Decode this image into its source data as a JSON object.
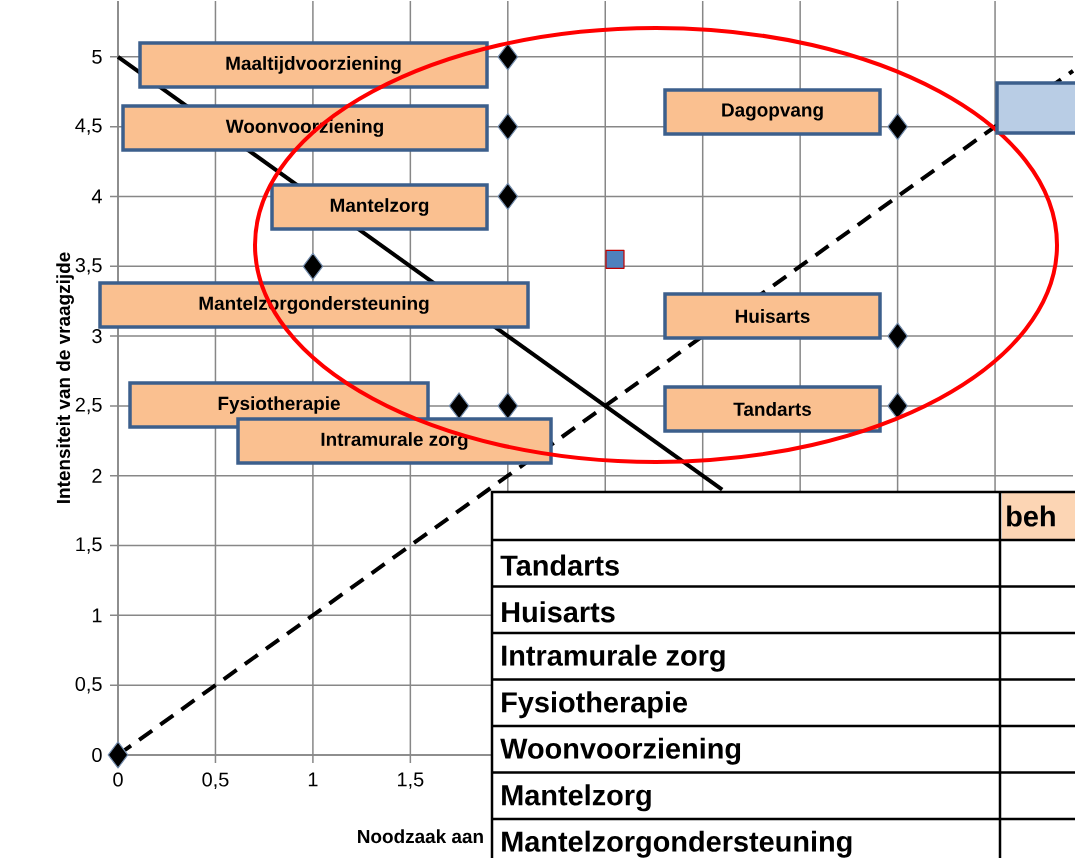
{
  "chart_data": {
    "type": "scatter",
    "xlabel": "Noodzaak aan",
    "ylabel": "Intensiteit van de vraagzijde",
    "xlim": [
      0,
      4.9
    ],
    "ylim": [
      0,
      5.4
    ],
    "xticks": [
      0,
      {
        "value": 0.5,
        "label": "0,5"
      },
      1,
      {
        "value": 1.5,
        "label": "1,5"
      },
      {
        "value": 2,
        "label": null
      },
      {
        "value": 2.5,
        "label": null
      },
      {
        "value": 3,
        "label": null
      },
      {
        "value": 3.5,
        "label": null
      },
      {
        "value": 4,
        "label": null
      },
      {
        "value": 4.5,
        "label": null
      }
    ],
    "yticks": [
      0,
      {
        "value": 0.5,
        "label": "0,5"
      },
      1,
      {
        "value": 1.5,
        "label": "1,5"
      },
      2,
      {
        "value": 2.5,
        "label": "2,5"
      },
      3,
      {
        "value": 3.5,
        "label": "3,5"
      },
      4,
      {
        "value": 4.5,
        "label": "4,5"
      },
      5
    ],
    "grid": true,
    "series": [
      {
        "type": "line",
        "color": "#000000",
        "line_style": "solid",
        "marker": "none",
        "x": [
          0,
          3.1
        ],
        "values": [
          5,
          1.9
        ]
      },
      {
        "type": "line",
        "color": "#000000",
        "line_style": "dashed",
        "marker": "none",
        "x": [
          0,
          4.9
        ],
        "values": [
          0,
          4.9
        ]
      },
      {
        "color": "#000000",
        "marker": "diamond",
        "x": [
          2,
          2,
          2,
          1,
          1.75,
          2,
          4,
          4,
          4,
          0
        ],
        "values": [
          5,
          4.5,
          4,
          3.5,
          2.5,
          2.5,
          4.5,
          3,
          2.5,
          0
        ]
      },
      {
        "color": "#4f81bd",
        "marker": "square",
        "x": [
          2.55
        ],
        "values": [
          3.55
        ]
      }
    ],
    "annotations": [
      "Maaltijdvoorziening",
      "Woonvoorziening",
      "Mantelzorg",
      "Mantelzorgondersteuning",
      "Fysiotherapie",
      "Intramurale zorg",
      "Dagopvang",
      "Huisarts",
      "Tandarts",
      "beh",
      "Tandarts",
      "Huisarts",
      "Intramurale zorg",
      "Fysiotherapie",
      "Woonvoorziening",
      "Mantelzorg",
      "Mantelzorgondersteuning"
    ]
  }
}
